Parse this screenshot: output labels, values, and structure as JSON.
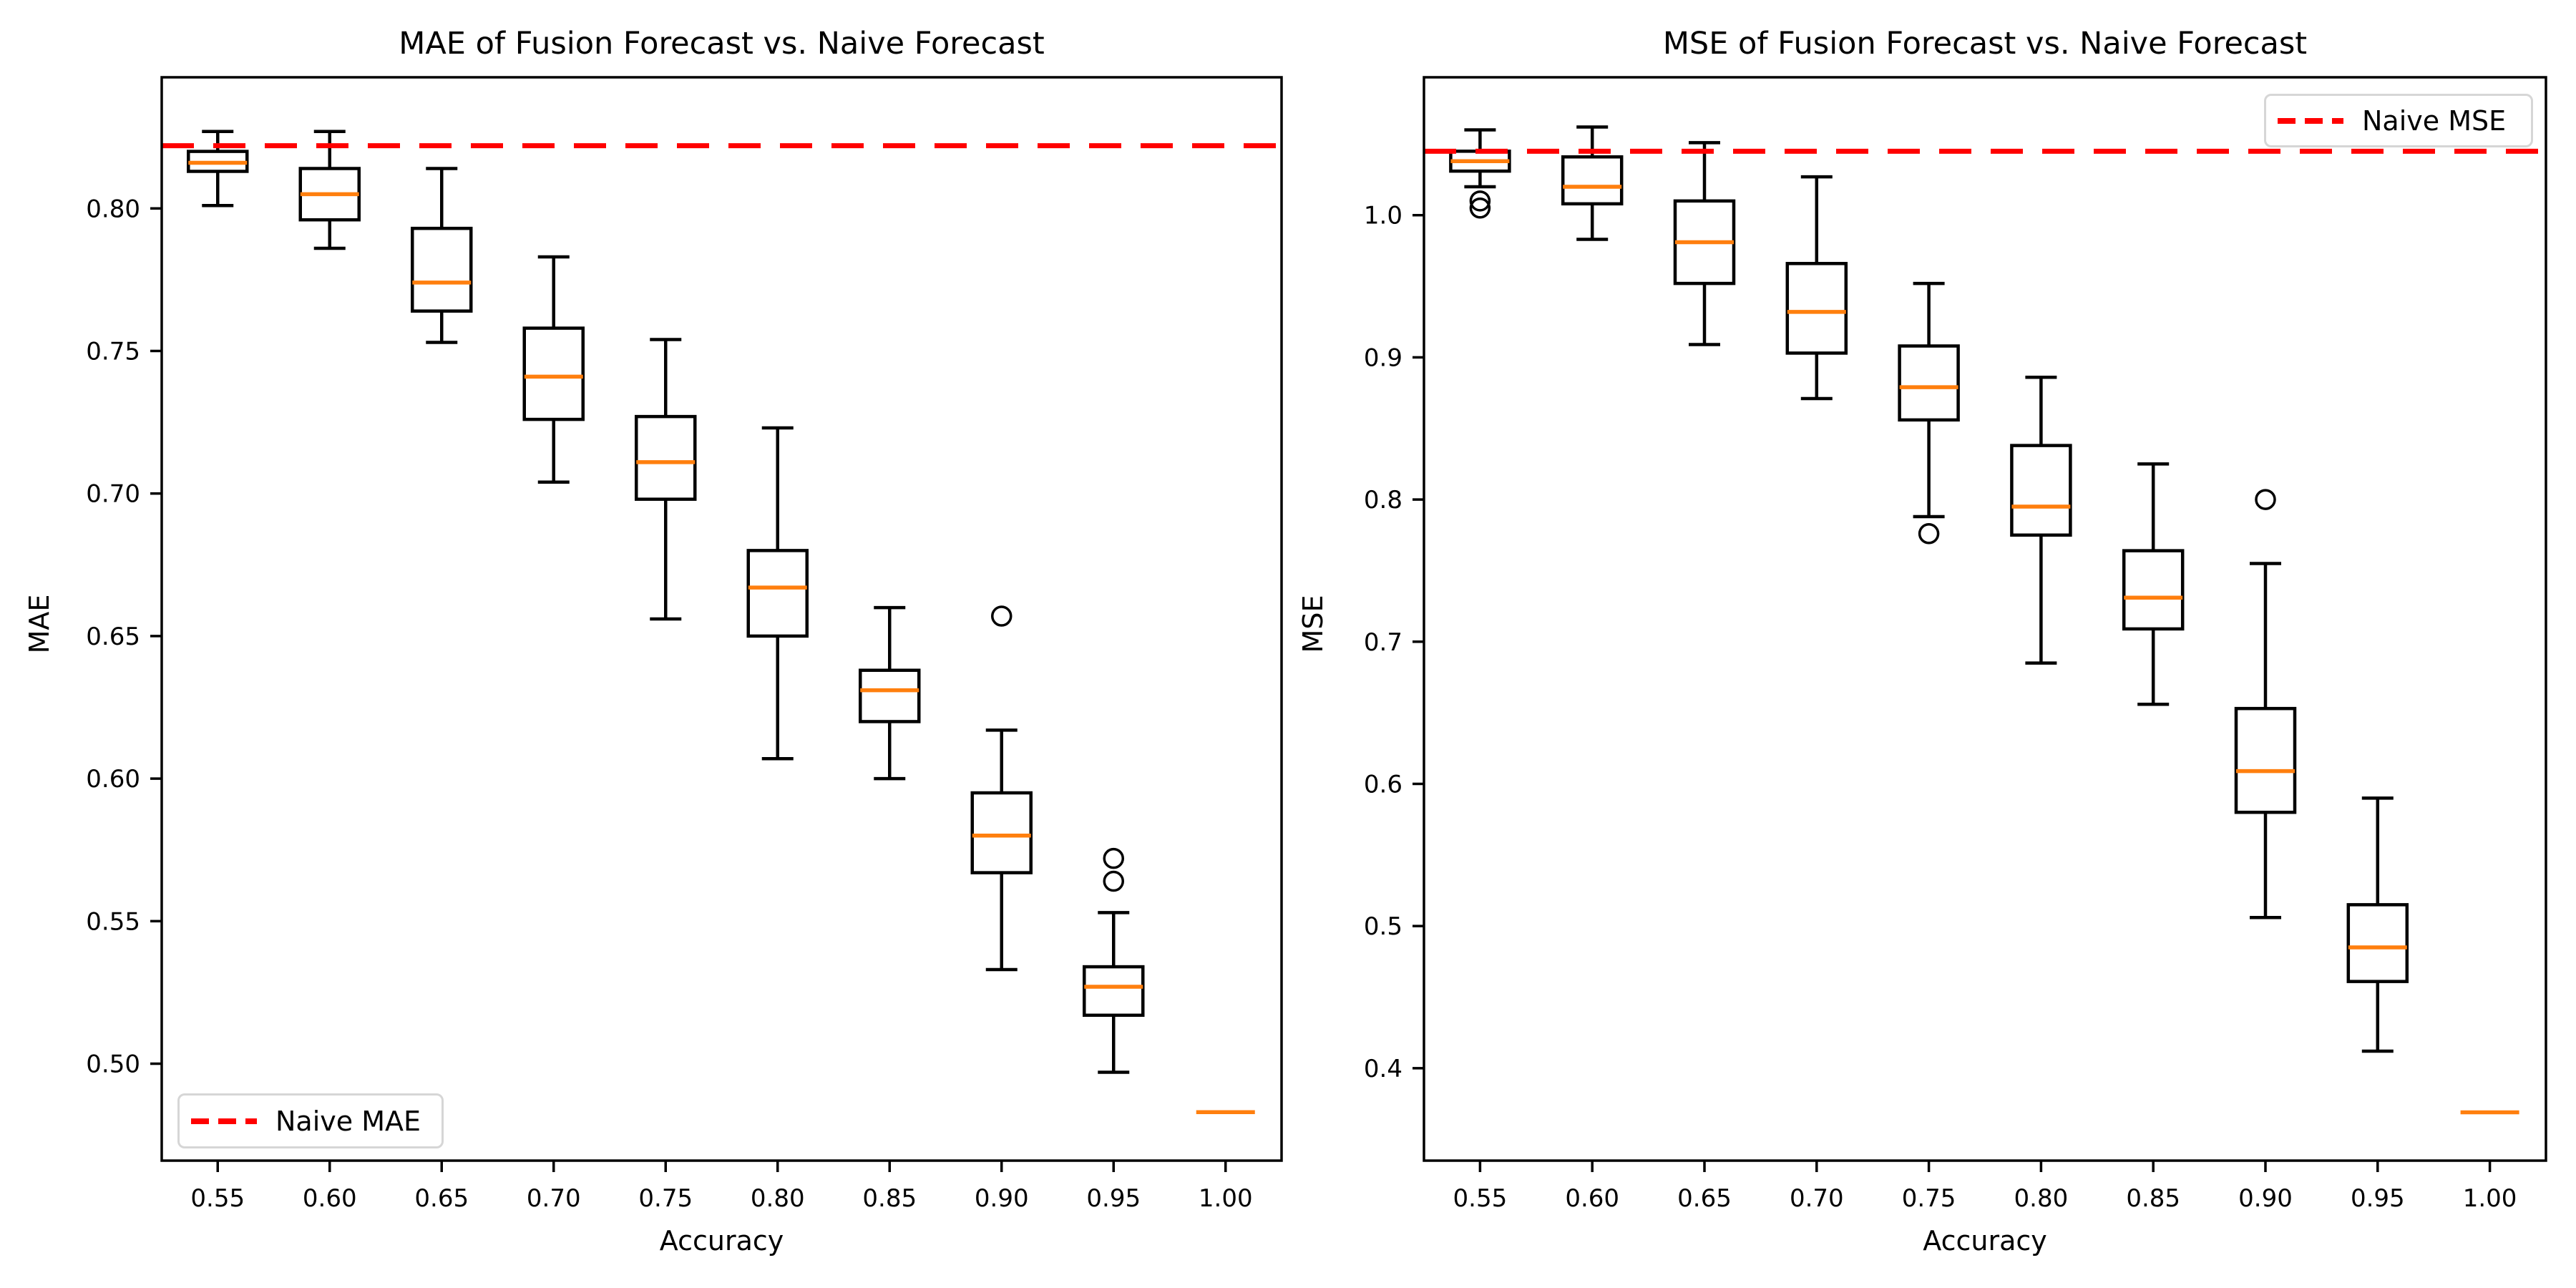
{
  "colors": {
    "box_line": "#000000",
    "median": "#ff7f0e",
    "naive": "#ff0000",
    "text": "#000000",
    "legend_border": "#d6d6d6",
    "background": "#ffffff"
  },
  "chart_data": [
    {
      "type": "boxplot",
      "title": "MAE of Fusion Forecast vs. Naive Forecast",
      "xlabel": "Accuracy",
      "ylabel": "MAE",
      "grid": false,
      "categories": [
        "0.55",
        "0.60",
        "0.65",
        "0.70",
        "0.75",
        "0.80",
        "0.85",
        "0.90",
        "0.95",
        "1.00"
      ],
      "ylim": [
        0.466,
        0.846
      ],
      "yticks": [
        {
          "v": 0.5,
          "label": "0.50"
        },
        {
          "v": 0.55,
          "label": "0.55"
        },
        {
          "v": 0.6,
          "label": "0.60"
        },
        {
          "v": 0.65,
          "label": "0.65"
        },
        {
          "v": 0.7,
          "label": "0.70"
        },
        {
          "v": 0.75,
          "label": "0.75"
        },
        {
          "v": 0.8,
          "label": "0.80"
        }
      ],
      "boxes": [
        {
          "whislo": 0.801,
          "q1": 0.813,
          "med": 0.816,
          "q3": 0.82,
          "whishi": 0.827,
          "fliers": []
        },
        {
          "whislo": 0.786,
          "q1": 0.796,
          "med": 0.805,
          "q3": 0.814,
          "whishi": 0.827,
          "fliers": []
        },
        {
          "whislo": 0.753,
          "q1": 0.764,
          "med": 0.774,
          "q3": 0.793,
          "whishi": 0.814,
          "fliers": []
        },
        {
          "whislo": 0.704,
          "q1": 0.726,
          "med": 0.741,
          "q3": 0.758,
          "whishi": 0.783,
          "fliers": []
        },
        {
          "whislo": 0.656,
          "q1": 0.698,
          "med": 0.711,
          "q3": 0.727,
          "whishi": 0.754,
          "fliers": []
        },
        {
          "whislo": 0.607,
          "q1": 0.65,
          "med": 0.667,
          "q3": 0.68,
          "whishi": 0.723,
          "fliers": []
        },
        {
          "whislo": 0.6,
          "q1": 0.62,
          "med": 0.631,
          "q3": 0.638,
          "whishi": 0.66,
          "fliers": []
        },
        {
          "whislo": 0.533,
          "q1": 0.567,
          "med": 0.58,
          "q3": 0.595,
          "whishi": 0.617,
          "fliers": [
            0.657
          ]
        },
        {
          "whislo": 0.497,
          "q1": 0.517,
          "med": 0.527,
          "q3": 0.534,
          "whishi": 0.553,
          "fliers": [
            0.572,
            0.564
          ]
        },
        {
          "whislo": 0.483,
          "q1": 0.483,
          "med": 0.483,
          "q3": 0.483,
          "whishi": 0.483,
          "fliers": []
        }
      ],
      "naive_line": {
        "label": "Naive MAE",
        "value": 0.822,
        "legend_position": "lower-left"
      }
    },
    {
      "type": "boxplot",
      "title": "MSE of Fusion Forecast vs. Naive Forecast",
      "xlabel": "Accuracy",
      "ylabel": "MSE",
      "grid": false,
      "categories": [
        "0.55",
        "0.60",
        "0.65",
        "0.70",
        "0.75",
        "0.80",
        "0.85",
        "0.90",
        "0.95",
        "1.00"
      ],
      "ylim": [
        0.335,
        1.097
      ],
      "yticks": [
        {
          "v": 0.4,
          "label": "0.4"
        },
        {
          "v": 0.5,
          "label": "0.5"
        },
        {
          "v": 0.6,
          "label": "0.6"
        },
        {
          "v": 0.7,
          "label": "0.7"
        },
        {
          "v": 0.8,
          "label": "0.8"
        },
        {
          "v": 0.9,
          "label": "0.9"
        },
        {
          "v": 1.0,
          "label": "1.0"
        }
      ],
      "boxes": [
        {
          "whislo": 1.02,
          "q1": 1.031,
          "med": 1.038,
          "q3": 1.045,
          "whishi": 1.06,
          "fliers": [
            1.01,
            1.005
          ]
        },
        {
          "whislo": 0.983,
          "q1": 1.008,
          "med": 1.02,
          "q3": 1.041,
          "whishi": 1.062,
          "fliers": []
        },
        {
          "whislo": 0.909,
          "q1": 0.952,
          "med": 0.981,
          "q3": 1.01,
          "whishi": 1.051,
          "fliers": []
        },
        {
          "whislo": 0.871,
          "q1": 0.903,
          "med": 0.932,
          "q3": 0.966,
          "whishi": 1.027,
          "fliers": []
        },
        {
          "whislo": 0.788,
          "q1": 0.856,
          "med": 0.879,
          "q3": 0.908,
          "whishi": 0.952,
          "fliers": [
            0.776
          ]
        },
        {
          "whislo": 0.685,
          "q1": 0.775,
          "med": 0.795,
          "q3": 0.838,
          "whishi": 0.886,
          "fliers": []
        },
        {
          "whislo": 0.656,
          "q1": 0.709,
          "med": 0.731,
          "q3": 0.764,
          "whishi": 0.825,
          "fliers": []
        },
        {
          "whislo": 0.506,
          "q1": 0.58,
          "med": 0.609,
          "q3": 0.653,
          "whishi": 0.755,
          "fliers": [
            0.8
          ]
        },
        {
          "whislo": 0.412,
          "q1": 0.461,
          "med": 0.485,
          "q3": 0.515,
          "whishi": 0.59,
          "fliers": []
        },
        {
          "whislo": 0.369,
          "q1": 0.369,
          "med": 0.369,
          "q3": 0.369,
          "whishi": 0.369,
          "fliers": []
        }
      ],
      "naive_line": {
        "label": "Naive MSE",
        "value": 1.045,
        "legend_position": "upper-right"
      }
    }
  ]
}
